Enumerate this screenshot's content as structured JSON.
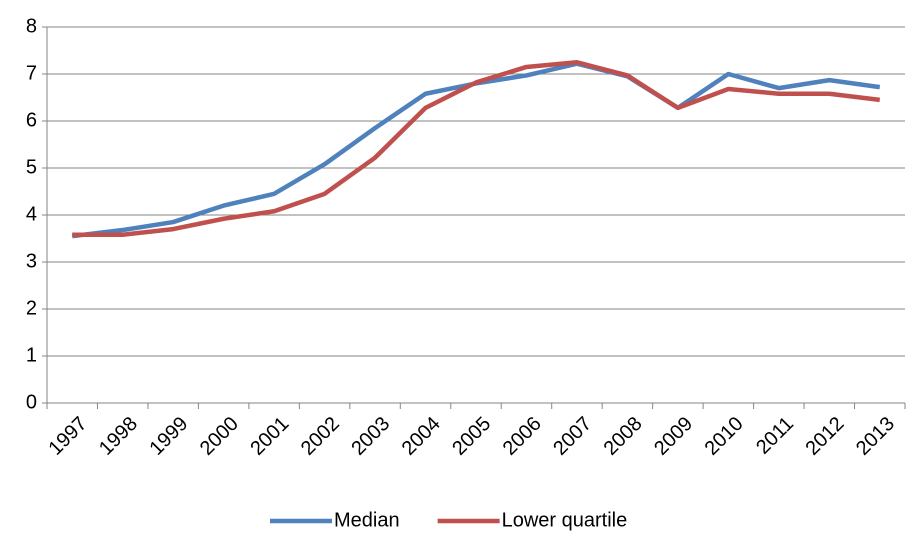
{
  "chart_data": {
    "type": "line",
    "categories": [
      "1997",
      "1998",
      "1999",
      "2000",
      "2001",
      "2002",
      "2003",
      "2004",
      "2005",
      "2006",
      "2007",
      "2008",
      "2009",
      "2010",
      "2011",
      "2012",
      "2013"
    ],
    "series": [
      {
        "name": "Median",
        "color": "#4f81bd",
        "values": [
          3.55,
          3.68,
          3.85,
          4.2,
          4.45,
          5.08,
          5.85,
          6.58,
          6.8,
          6.97,
          7.22,
          6.95,
          6.28,
          7.0,
          6.7,
          6.87,
          6.72
        ]
      },
      {
        "name": "Lower quartile",
        "color": "#c0504d",
        "values": [
          3.58,
          3.58,
          3.7,
          3.92,
          4.08,
          4.45,
          5.22,
          6.28,
          6.82,
          7.15,
          7.25,
          6.97,
          6.28,
          6.68,
          6.58,
          6.58,
          6.45
        ]
      }
    ],
    "ylim": [
      0,
      8
    ],
    "yticks": [
      0,
      1,
      2,
      3,
      4,
      5,
      6,
      7,
      8
    ],
    "grid": true,
    "legend": "bottom"
  }
}
